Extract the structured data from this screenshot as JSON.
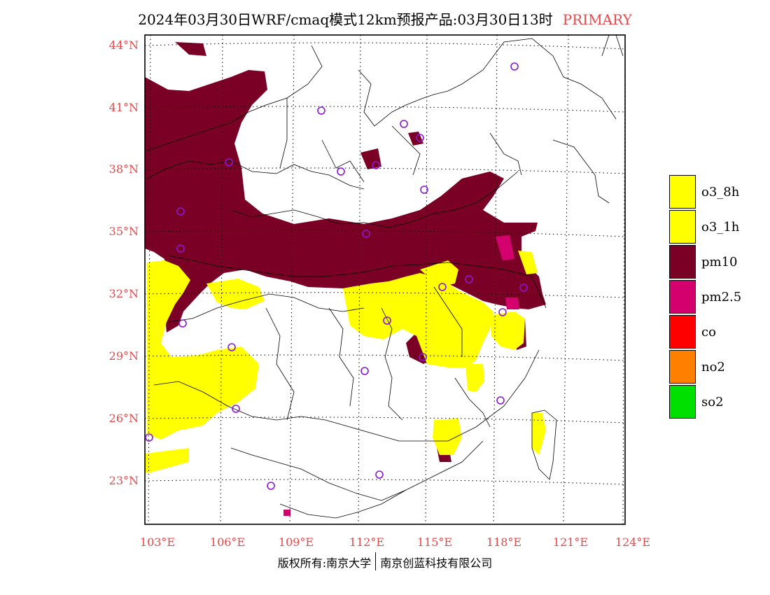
{
  "title": {
    "main": "2024年03月30日WRF/cmaq模式12km预报产品:03月30日13时",
    "tag": "PRIMARY",
    "tag_color": "#e8474a"
  },
  "axes": {
    "lat_labels": [
      "44°N",
      "41°N",
      "38°N",
      "35°N",
      "32°N",
      "29°N",
      "26°N",
      "23°N"
    ],
    "lon_labels": [
      "103°E",
      "106°E",
      "109°E",
      "112°E",
      "115°E",
      "118°E",
      "121°E",
      "124°E"
    ],
    "label_color": "#e8474a"
  },
  "legend": [
    {
      "label": "o3_8h",
      "color": "#ffff00"
    },
    {
      "label": "o3_1h",
      "color": "#ffff00"
    },
    {
      "label": "pm10",
      "color": "#7a0026"
    },
    {
      "label": "pm2.5",
      "color": "#d4006e"
    },
    {
      "label": "co",
      "color": "#ff0000"
    },
    {
      "label": "no2",
      "color": "#ff7f00"
    },
    {
      "label": "so2",
      "color": "#00e000"
    }
  ],
  "footer": {
    "left": "版权所有:南京大学",
    "right": "南京创蓝科技有限公司"
  }
}
